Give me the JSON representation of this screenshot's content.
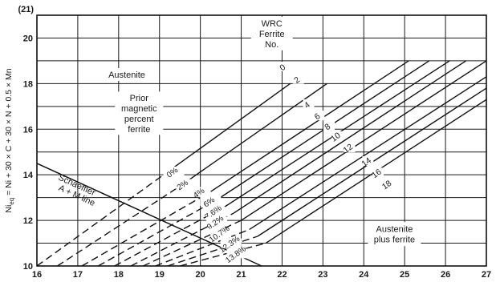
{
  "chart_data": {
    "type": "line",
    "title": "",
    "xlabel": "",
    "ylabel_parts": [
      "Ni",
      "eq",
      " = Ni + 30 × C + 30 × N + 0.5 × Mn"
    ],
    "xlim": [
      16,
      27
    ],
    "ylim": [
      10,
      21
    ],
    "x_ticks": [
      "16",
      "17",
      "18",
      "19",
      "20",
      "21",
      "22",
      "23",
      "24",
      "25",
      "26",
      "27"
    ],
    "y_ticks": [
      "10",
      "12",
      "14",
      "16",
      "18",
      "20"
    ],
    "y_top_label": "(21)",
    "grid": true,
    "ferrite_lines": [
      {
        "fn": "0",
        "pct": "0%",
        "start": [
          16.0,
          10.0
        ],
        "dash_end": [
          19.1,
          14.0
        ],
        "end": [
          22.2,
          18.0
        ],
        "fn_at": [
          22.05,
          18.75
        ],
        "pct_at": [
          19.35,
          14.15
        ]
      },
      {
        "fn": "2",
        "pct": "2%",
        "start": [
          16.5,
          10.0
        ],
        "dash_end": [
          19.5,
          13.5
        ],
        "end": [
          23.1,
          18.0
        ],
        "fn_at": [
          22.4,
          18.2
        ],
        "pct_at": [
          19.6,
          13.6
        ]
      },
      {
        "fn": "4",
        "pct": "4%",
        "start": [
          17.1,
          10.0
        ],
        "dash_end": [
          20.2,
          13.2
        ],
        "end": [
          25.1,
          19.0
        ],
        "fn_at": [
          22.65,
          17.1
        ],
        "pct_at": [
          20.0,
          13.25
        ]
      },
      {
        "fn": "6",
        "pct": "6%",
        "start": [
          17.5,
          10.0
        ],
        "dash_end": [
          20.4,
          12.9
        ],
        "end": [
          25.6,
          19.0
        ],
        "fn_at": [
          22.9,
          16.6
        ],
        "pct_at": [
          20.25,
          12.85
        ]
      },
      {
        "fn": "8",
        "pct": "7.6%",
        "start": [
          17.9,
          10.0
        ],
        "dash_end": [
          20.6,
          12.6
        ],
        "end": [
          26.1,
          19.0
        ],
        "fn_at": [
          23.15,
          16.15
        ],
        "pct_at": [
          20.35,
          12.4
        ]
      },
      {
        "fn": "10",
        "pct": "9.2%",
        "start": [
          18.3,
          10.0
        ],
        "dash_end": [
          20.8,
          12.3
        ],
        "end": [
          26.5,
          19.0
        ],
        "fn_at": [
          23.35,
          15.7
        ],
        "pct_at": [
          20.4,
          11.95
        ]
      },
      {
        "fn": "12",
        "pct": "10.7%",
        "start": [
          18.6,
          10.0
        ],
        "dash_end": [
          21.0,
          12.0
        ],
        "end": [
          27.0,
          19.0
        ],
        "fn_at": [
          23.65,
          15.2
        ],
        "pct_at": [
          20.5,
          11.45
        ]
      },
      {
        "fn": "14",
        "pct": "12.3%",
        "start": [
          18.9,
          10.0
        ],
        "dash_end": [
          21.2,
          11.6
        ],
        "end": [
          27.0,
          18.3
        ],
        "fn_at": [
          24.1,
          14.6
        ],
        "pct_at": [
          20.75,
          11.0
        ]
      },
      {
        "fn": "16",
        "pct": "13.8%",
        "start": [
          19.2,
          10.0
        ],
        "dash_end": [
          21.4,
          11.3
        ],
        "end": [
          27.0,
          17.8
        ],
        "fn_at": [
          24.35,
          14.1
        ],
        "pct_at": [
          20.9,
          10.55
        ]
      },
      {
        "fn": "18",
        "pct": "",
        "start": [
          19.5,
          10.0
        ],
        "dash_end": [
          21.6,
          11.0
        ],
        "end": [
          27.0,
          17.3
        ],
        "fn_at": [
          24.6,
          13.6
        ],
        "pct_at": null
      }
    ],
    "schaeffler_line": {
      "points": [
        [
          16.0,
          14.5
        ],
        [
          21.5,
          10.0
        ]
      ]
    },
    "annotations": {
      "wrc": {
        "lines": [
          "WRC",
          "Ferrite",
          "No."
        ],
        "at": [
          21.75,
          20.2
        ]
      },
      "austenite": {
        "text": "Austenite",
        "at": [
          18.2,
          18.4
        ]
      },
      "prior": {
        "lines": [
          "Prior",
          "magnetic",
          "percent",
          "ferrite"
        ],
        "at": [
          18.5,
          16.7
        ]
      },
      "schaeffler": {
        "lines": [
          "Schaeffler",
          "A + M line"
        ],
        "at": [
          16.95,
          13.35
        ]
      },
      "austenite_ferrite": {
        "lines": [
          "Austenite",
          "plus ferrite"
        ],
        "at": [
          24.75,
          11.4
        ]
      }
    }
  }
}
